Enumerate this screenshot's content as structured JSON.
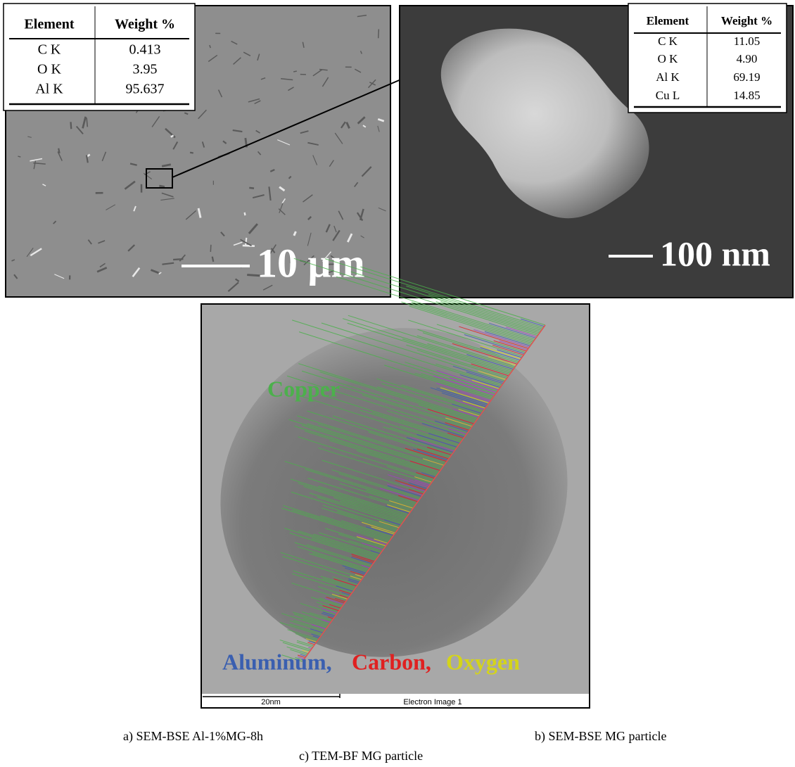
{
  "panels": [
    {
      "table": {
        "headers": [
          "Element",
          "Weight %"
        ],
        "rows": [
          [
            "C K",
            "0.413"
          ],
          [
            "O K",
            "3.95"
          ],
          [
            "Al K",
            "95.637"
          ]
        ]
      },
      "scale_bar": "10 μm",
      "caption": "a) SEM-BSE Al-1%MG-8h"
    },
    {
      "table": {
        "headers": [
          "Element",
          "Weight %"
        ],
        "rows": [
          [
            "C K",
            "11.05"
          ],
          [
            "O K",
            "4.90"
          ],
          [
            "Al K",
            "69.19"
          ],
          [
            "Cu L",
            "14.85"
          ]
        ]
      },
      "scale_bar": "100 nm",
      "caption": "b) SEM-BSE MG particle"
    },
    {
      "overlay_labels": [
        "Copper",
        "Aluminum,",
        "Carbon,",
        "Oxygen"
      ],
      "scale_bar": "20nm",
      "image_label": "Electron Image 1",
      "caption": "c) TEM-BF MG particle"
    }
  ]
}
